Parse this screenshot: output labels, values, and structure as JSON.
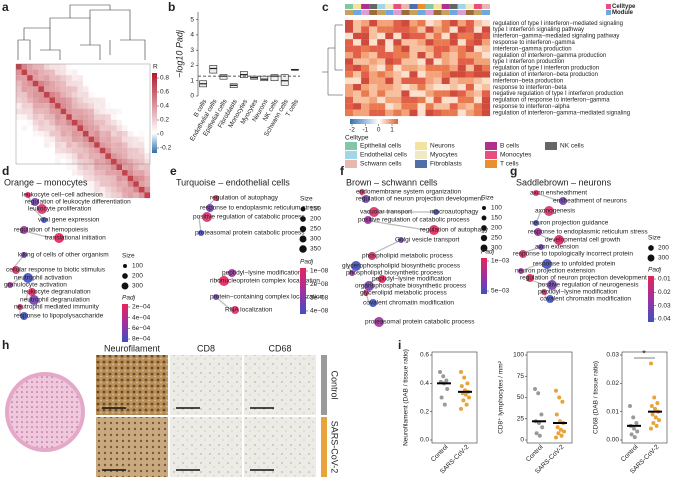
{
  "figure_labels": [
    "a",
    "b",
    "c",
    "d",
    "e",
    "f",
    "g",
    "h",
    "i"
  ],
  "a": {
    "colorbar_title": "R",
    "colorbar_ticks": [
      0.8,
      0.6,
      0.4,
      0.2,
      0,
      -0.2
    ]
  },
  "chart_data": [
    {
      "type": "box",
      "y_label": "−log10 Padj",
      "categories": [
        "B cells",
        "Endothelial cells",
        "Epithelial cells",
        "Fibroblasts",
        "Monocytes",
        "Myocytes",
        "Neurons",
        "NK cells",
        "Schwann cells",
        "T cells"
      ],
      "q1": [
        0.6,
        1.5,
        1.1,
        0.55,
        1.2,
        1.1,
        1.0,
        1.0,
        0.7,
        1.7
      ],
      "median": [
        0.8,
        1.8,
        1.3,
        0.7,
        1.4,
        1.2,
        1.1,
        1.3,
        1.0,
        1.7
      ],
      "q3": [
        1.0,
        2.0,
        1.4,
        0.8,
        1.6,
        1.3,
        1.3,
        1.4,
        1.4,
        1.75
      ],
      "ylim": [
        0,
        5.5
      ],
      "yticks": [
        0,
        1,
        2,
        3,
        4,
        5
      ],
      "threshold": 1.3
    },
    {
      "type": "dot",
      "y_label": "Neurofilament (DAB / tissue ratio)",
      "categories": [
        "Control",
        "SARS-CoV-2"
      ],
      "points": [
        [
          0.48,
          0.45,
          0.42,
          0.41,
          0.4,
          0.36,
          0.3,
          0.25
        ],
        [
          0.48,
          0.44,
          0.4,
          0.38,
          0.35,
          0.34,
          0.33,
          0.32,
          0.3,
          0.28,
          0.25,
          0.22
        ]
      ],
      "means": [
        0.4,
        0.34
      ],
      "colors": [
        "#9a9a9a",
        "#e8a33a"
      ],
      "ylim": [
        0,
        0.6
      ],
      "yticks": [
        {
          "value": 0,
          "label": "0.0"
        },
        0.2,
        0.4,
        0.6
      ]
    },
    {
      "type": "dot",
      "y_label": "CD8⁺ lymphocytes / mm²",
      "categories": [
        "Control",
        "SARS-CoV-2"
      ],
      "points": [
        [
          60,
          55,
          30,
          22,
          20,
          15,
          8,
          5
        ],
        [
          58,
          50,
          45,
          30,
          22,
          20,
          15,
          12,
          10,
          8,
          5,
          3
        ]
      ],
      "means": [
        22,
        20
      ],
      "colors": [
        "#9a9a9a",
        "#e8a33a"
      ],
      "ylim": [
        0,
        100
      ],
      "yticks": [
        0,
        25,
        50,
        75,
        100
      ]
    },
    {
      "type": "dot",
      "y_label": "CD68 (DAB / tissue ratio)",
      "categories": [
        "Control",
        "SARS-CoV-2"
      ],
      "points": [
        [
          0.012,
          0.008,
          0.006,
          0.005,
          0.004,
          0.003,
          0.002,
          0.001
        ],
        [
          0.027,
          0.015,
          0.013,
          0.012,
          0.011,
          0.01,
          0.009,
          0.008,
          0.007,
          0.006,
          0.005,
          0.004
        ]
      ],
      "means": [
        0.005,
        0.01
      ],
      "colors": [
        "#9a9a9a",
        "#e8a33a"
      ],
      "ylim": [
        0,
        0.03
      ],
      "yticks": [
        {
          "value": 0,
          "label": "0.00"
        },
        0.01,
        0.02,
        0.03
      ],
      "annotation": "*"
    }
  ],
  "c": {
    "top_legend": [
      "Celltype",
      "Module"
    ],
    "terms": [
      "regulation of type I interferon−mediated signaling",
      "type I interferon signaling pathway",
      "interferon−gamma−mediated signaling pathway",
      "response to interferon−gamma",
      "interferon−gamma production",
      "regulation of interferon−gamma production",
      "type I interferon production",
      "regulation of type I interferon production",
      "regulation of interferon−beta production",
      "interferon−beta production",
      "response to interferon−beta",
      "negative regulation of type I interferon production",
      "regulation of response to interferon−gamma",
      "response to interferon−alpha",
      "regulation of interferon−gamma−mediated signaling"
    ],
    "colorbar_ticks": [
      -2,
      -1,
      0,
      1
    ],
    "legend_title": "Celltype",
    "celltypes": [
      {
        "name": "Epithelial cells",
        "color": "#7fc7a6"
      },
      {
        "name": "Neurons",
        "color": "#f3e3a0"
      },
      {
        "name": "B cells",
        "color": "#b0308f"
      },
      {
        "name": "NK cells",
        "color": "#666666"
      },
      {
        "name": "Endothelial cells",
        "color": "#9fd7e8"
      },
      {
        "name": "Myocytes",
        "color": "#f1e9c4"
      },
      {
        "name": "Monocytes",
        "color": "#e74f7f"
      },
      {
        "name": "Schwann cells",
        "color": "#e8b8b0"
      },
      {
        "name": "Fibroblasts",
        "color": "#4f6fa8"
      },
      {
        "name": "T cells",
        "color": "#e8902f"
      }
    ]
  },
  "d": {
    "title": "Orange – monocytes",
    "terms": [
      "leukocyte cell−cell adhesion",
      "regulation of leukocyte differentiation",
      "leukocyte proliferation",
      "viral gene expression",
      "regulation of hemopoiesis",
      "translational initiation",
      "killing of cells of other organism",
      "cellular response to biotic stimulus",
      "neutrophil activation",
      "granulocyte activation",
      "leukocyte degranulation",
      "neutrophil degranulation",
      "neutrophil mediated immunity",
      "response to lipopolysaccharide"
    ],
    "size_title": "Size",
    "sizes": [
      100,
      200,
      300
    ],
    "padj_title": "Padj",
    "padj_ticks": [
      {
        "value": 0.0002,
        "label": "2e−04"
      },
      {
        "value": 0.0004,
        "label": "4e−04"
      },
      {
        "value": 0.0006,
        "label": "6e−04"
      },
      {
        "value": 0.0008,
        "label": "8e−04"
      }
    ]
  },
  "e": {
    "title": "Turquoise – endothelial cells",
    "terms": [
      "regulation of autophagy",
      "response to endoplasmic reticulum stress",
      "positive regulation of catabolic process",
      "proteasomal protein catabolic process",
      "peptidyl−lysine modification",
      "ribonucleoprotein complex localization",
      "protein−containing complex localization",
      "RNA localization"
    ],
    "size_title": "Size",
    "sizes": [
      150,
      200,
      250,
      300,
      350
    ],
    "padj_title": "Padj",
    "padj_ticks": [
      {
        "value": 1e-08,
        "label": "1e−08"
      },
      {
        "value": 2e-08,
        "label": "2e−08"
      },
      {
        "value": 3e-08,
        "label": "3e−08"
      },
      {
        "value": 4e-08,
        "label": "4e−08"
      }
    ]
  },
  "f": {
    "title": "Brown – schwann cells",
    "terms": [
      "endomembrane system organization",
      "regulation of neuron projection development",
      "vacuolar transport",
      "macroautophagy",
      "positive regulation of catabolic process",
      "regulation of autophagy",
      "Golgi vesicle transport",
      "phospholipid metabolic process",
      "glycerophospholipid biosynthetic process",
      "phospholipid biosynthetic process",
      "peptidyl−lysine modification",
      "organophosphate biosynthetic process",
      "glycerolipid metabolic process",
      "covalent chromatin modification",
      "proteasomal protein catabolic process"
    ],
    "size_title": "Size",
    "sizes": [
      100,
      150,
      200,
      250,
      300
    ],
    "padj_title": "Padj",
    "padj_ticks": [
      {
        "value": 0.005,
        "label": "5e−03"
      },
      {
        "value": 0.001,
        "label": "1e−03"
      }
    ]
  },
  "g": {
    "title": "Saddlebrown – neurons",
    "terms": [
      "axon ensheathment",
      "ensheathment of neurons",
      "axonogenesis",
      "neuron projection guidance",
      "response to endoplasmic reticulum stress",
      "developmental cell growth",
      "axon extension",
      "response to topologically incorrect protein",
      "response to unfolded protein",
      "neuron projection extension",
      "regulation of neuron projection development",
      "positive regulation of neurogenesis",
      "peptidyl−lysine modification",
      "covalent chromatin modification"
    ],
    "size_title": "Size",
    "sizes": [
      200,
      300
    ],
    "padj_title": "Padj",
    "padj_ticks": [
      0.01,
      0.02,
      0.03,
      0.04
    ]
  },
  "h": {
    "stains": [
      "Neurofilament",
      "CD8",
      "CD68"
    ],
    "groups": [
      "Control",
      "SARS-CoV-2"
    ]
  }
}
